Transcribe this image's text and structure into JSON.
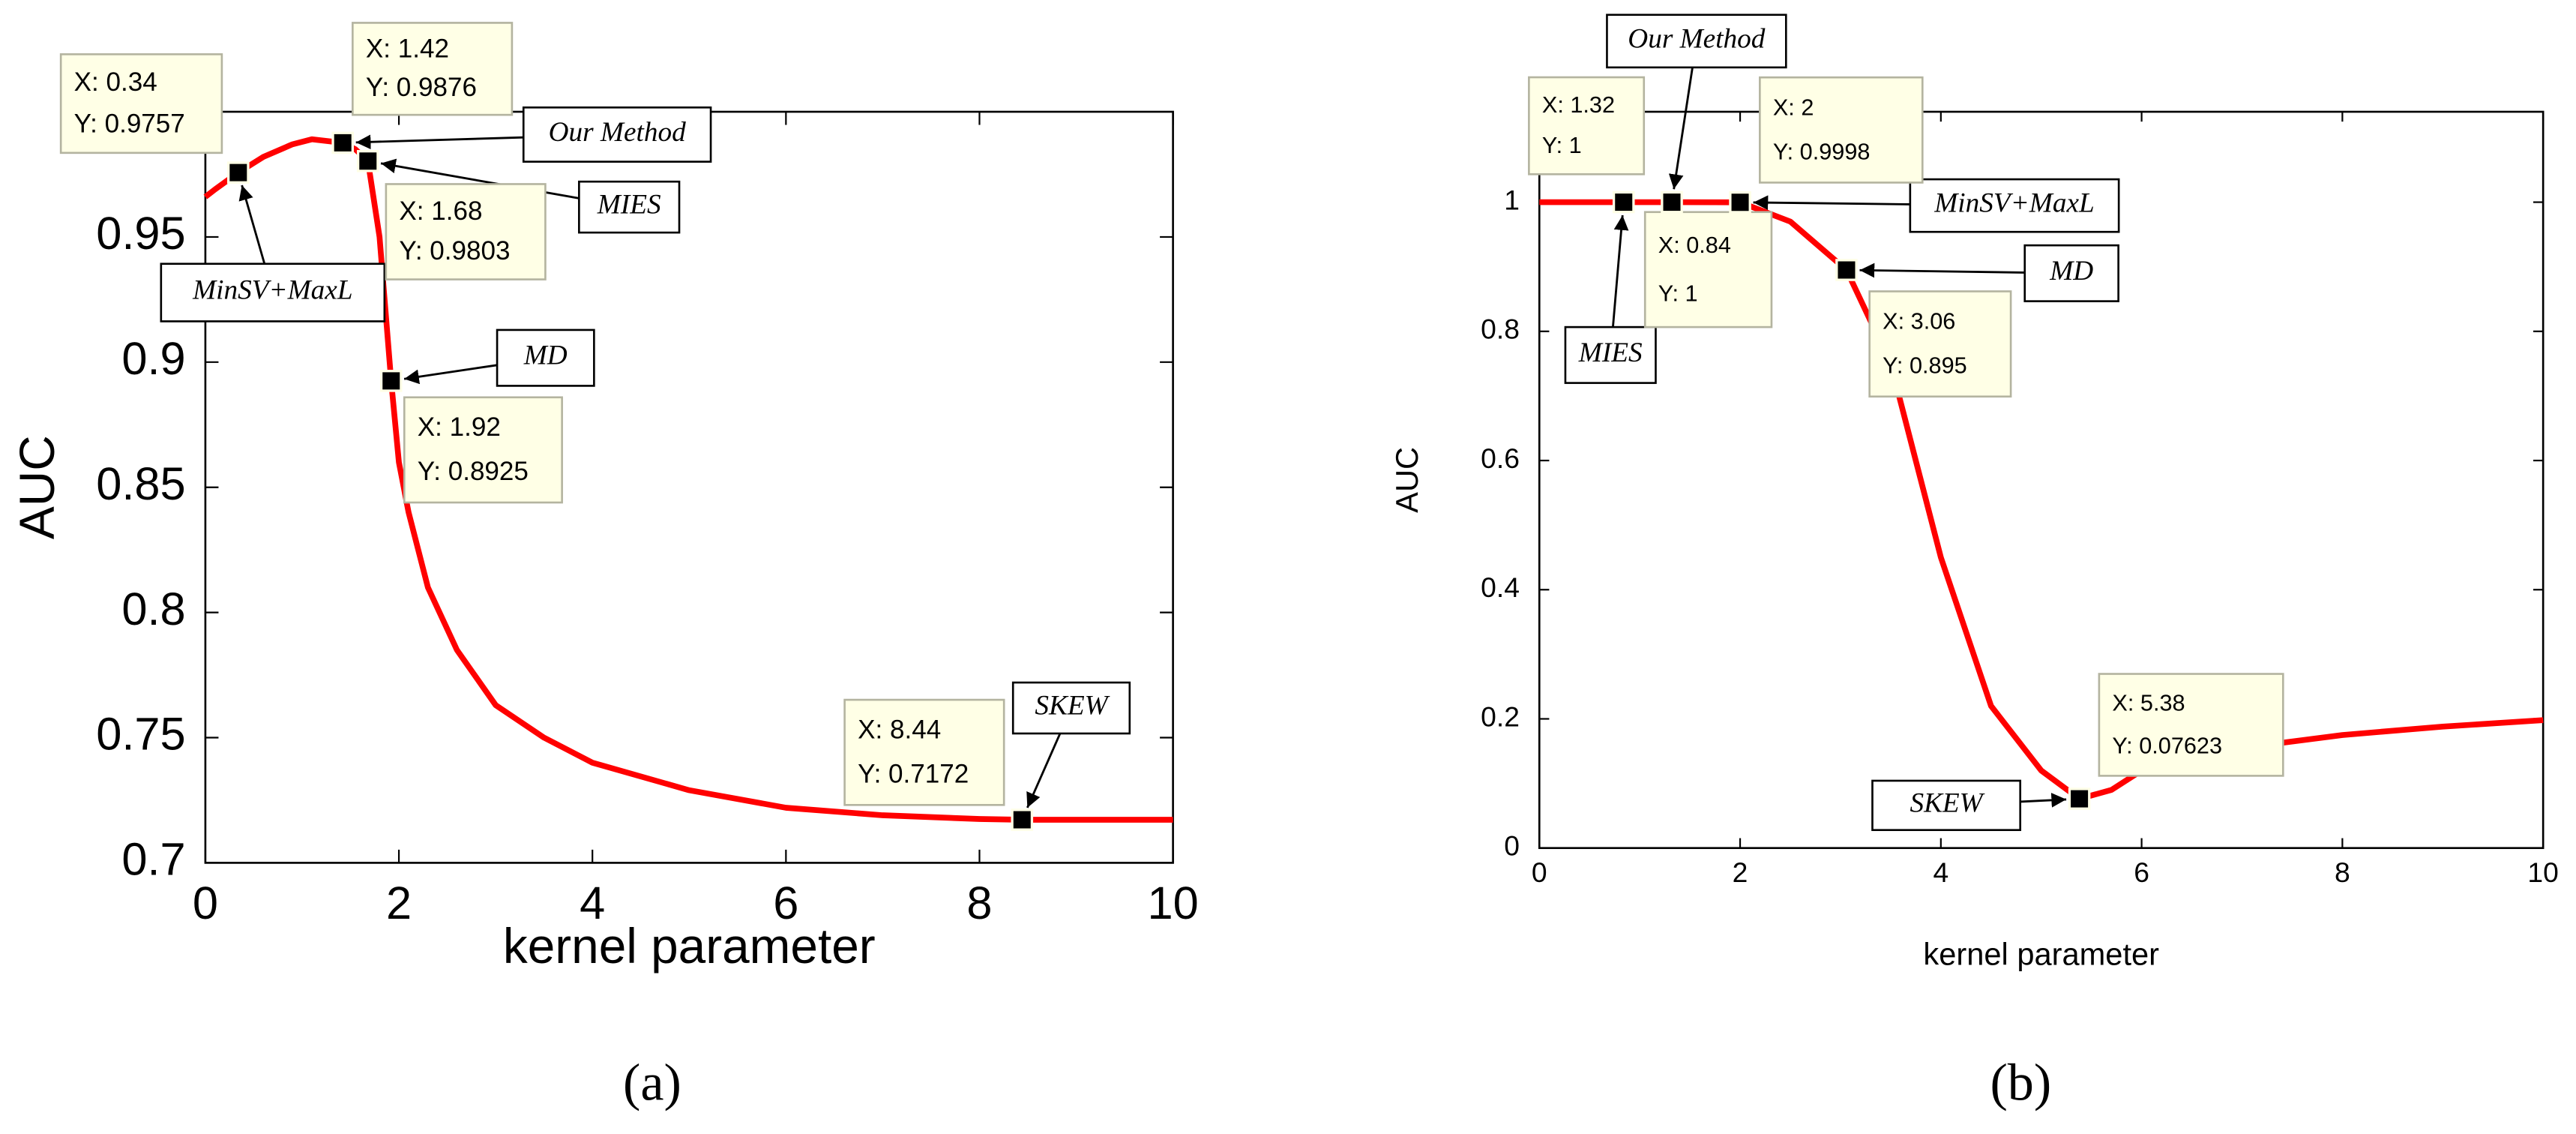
{
  "chart_data": [
    {
      "type": "line",
      "panel": "(a)",
      "xlabel": "kernel parameter",
      "ylabel": "AUC",
      "xlim": [
        0,
        10
      ],
      "ylim": [
        0.7,
        1.0
      ],
      "xticks": [
        0,
        2,
        4,
        6,
        8,
        10
      ],
      "yticks": [
        0.7,
        0.75,
        0.8,
        0.85,
        0.9,
        0.95
      ],
      "x": [
        0,
        0.1,
        0.34,
        0.6,
        0.9,
        1.1,
        1.42,
        1.55,
        1.68,
        1.8,
        1.92,
        2.0,
        2.1,
        2.3,
        2.6,
        3,
        3.5,
        4,
        5,
        6,
        7,
        8,
        8.44,
        9,
        10
      ],
      "series": [
        {
          "color": "#ff0000",
          "values": [
            0.966,
            0.969,
            0.9757,
            0.982,
            0.987,
            0.989,
            0.9876,
            0.985,
            0.9803,
            0.95,
            0.8925,
            0.86,
            0.84,
            0.81,
            0.785,
            0.763,
            0.75,
            0.74,
            0.729,
            0.722,
            0.719,
            0.7175,
            0.7172,
            0.7172,
            0.7172
          ]
        }
      ],
      "datatips": [
        {
          "x": 0.34,
          "y": 0.9757,
          "x_label": "X: 0.34",
          "y_label": "Y: 0.9757",
          "method": "MinSV+MaxL"
        },
        {
          "x": 1.42,
          "y": 0.9876,
          "x_label": "X: 1.42",
          "y_label": "Y: 0.9876",
          "method": "Our Method"
        },
        {
          "x": 1.68,
          "y": 0.9803,
          "x_label": "X: 1.68",
          "y_label": "Y: 0.9803",
          "method": "MIES"
        },
        {
          "x": 1.92,
          "y": 0.8925,
          "x_label": "X: 1.92",
          "y_label": "Y: 0.8925",
          "method": "MD"
        },
        {
          "x": 8.44,
          "y": 0.7172,
          "x_label": "X: 8.44",
          "y_label": "Y: 0.7172",
          "method": "SKEW"
        }
      ]
    },
    {
      "type": "line",
      "panel": "(b)",
      "xlabel": "kernel parameter",
      "ylabel": "AUC",
      "xlim": [
        0,
        10
      ],
      "ylim": [
        0,
        1.14
      ],
      "xticks": [
        0,
        2,
        4,
        6,
        8,
        10
      ],
      "yticks": [
        0,
        0.2,
        0.4,
        0.6,
        0.8,
        1
      ],
      "x": [
        0,
        0.84,
        1.32,
        2,
        2.5,
        3.06,
        3.5,
        4,
        4.5,
        5,
        5.38,
        5.7,
        6,
        7,
        8,
        9,
        10
      ],
      "series": [
        {
          "color": "#ff0000",
          "values": [
            1,
            1,
            1,
            0.9998,
            0.97,
            0.895,
            0.75,
            0.45,
            0.22,
            0.12,
            0.07623,
            0.09,
            0.12,
            0.155,
            0.175,
            0.188,
            0.198
          ]
        }
      ],
      "datatips": [
        {
          "x": 0.84,
          "y": 1,
          "x_label": "X: 0.84",
          "y_label": "Y: 1",
          "method": "MIES"
        },
        {
          "x": 1.32,
          "y": 1,
          "x_label": "X: 1.32",
          "y_label": "Y: 1",
          "method": "Our Method"
        },
        {
          "x": 2,
          "y": 0.9998,
          "x_label": "X: 2",
          "y_label": "Y: 0.9998",
          "method": "MinSV+MaxL"
        },
        {
          "x": 3.06,
          "y": 0.895,
          "x_label": "X: 3.06",
          "y_label": "Y: 0.895",
          "method": "MD"
        },
        {
          "x": 5.38,
          "y": 0.07623,
          "x_label": "X: 5.38",
          "y_label": "Y: 0.07623",
          "method": "SKEW"
        }
      ]
    }
  ]
}
